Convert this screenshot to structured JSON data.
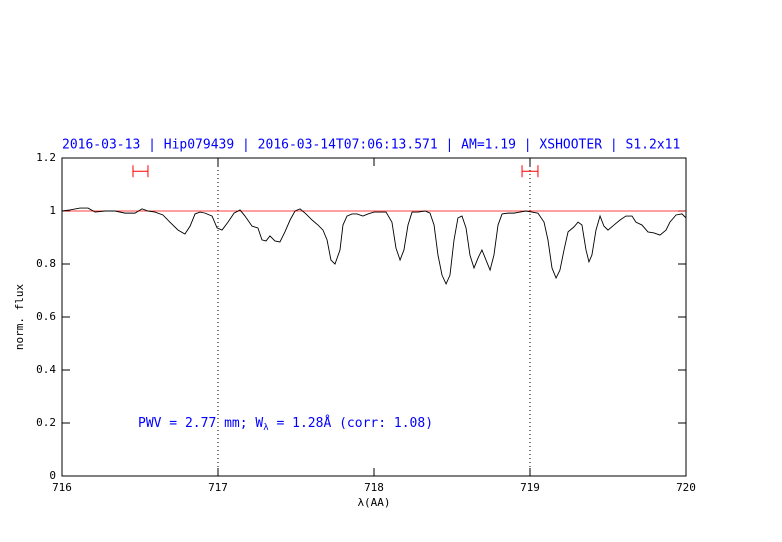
{
  "chart_data": {
    "type": "line",
    "title": "2016-03-13 | Hip079439 | 2016-03-14T07:06:13.571 | AM=1.19 | XSHOOTER | S1.2x11",
    "xlabel": "λ(AA)",
    "ylabel": "norm. flux",
    "annotation": [
      "PWV = 2.77 mm; W",
      "λ",
      " = 1.28Å (corr: 1.08)"
    ],
    "color": "#000000",
    "xlim": [
      716,
      720
    ],
    "ylim": [
      0,
      1.2
    ],
    "xticks": [
      716,
      717,
      718,
      719,
      720
    ],
    "yticks": [
      0,
      0.2,
      0.4,
      0.6,
      0.8,
      1,
      1.2
    ],
    "vlines": [
      717,
      719
    ],
    "reference_line": {
      "y": 1,
      "color": "#ff0000"
    },
    "range_markers": {
      "y": 1.15,
      "color": "#ff0000",
      "ranges": [
        [
          716.455,
          716.551
        ],
        [
          718.949,
          719.051
        ]
      ]
    },
    "x": [
      716,
      716.051,
      716.115,
      716.167,
      716.212,
      716.276,
      716.34,
      716.404,
      716.468,
      716.513,
      716.551,
      716.596,
      716.647,
      716.692,
      716.744,
      716.788,
      716.821,
      716.853,
      716.885,
      716.917,
      716.962,
      716.994,
      717.026,
      717.064,
      717.103,
      717.141,
      717.173,
      717.218,
      717.256,
      717.282,
      717.308,
      717.333,
      717.365,
      717.397,
      717.429,
      717.462,
      717.494,
      717.526,
      717.564,
      717.603,
      717.641,
      717.673,
      717.699,
      717.724,
      717.75,
      717.782,
      717.801,
      717.827,
      717.859,
      717.891,
      717.929,
      717.962,
      718.0,
      718.038,
      718.077,
      718.115,
      718.141,
      718.167,
      718.192,
      718.218,
      718.244,
      718.282,
      718.327,
      718.359,
      718.385,
      718.41,
      718.436,
      718.462,
      718.487,
      718.513,
      718.538,
      718.564,
      718.59,
      718.615,
      718.641,
      718.667,
      718.692,
      718.718,
      718.744,
      718.769,
      718.795,
      718.821,
      718.859,
      718.897,
      718.936,
      718.974,
      719.013,
      719.051,
      719.09,
      719.115,
      719.141,
      719.167,
      719.192,
      719.218,
      719.244,
      719.282,
      719.308,
      719.333,
      719.359,
      719.378,
      719.397,
      719.423,
      719.449,
      719.474,
      719.5,
      719.538,
      719.577,
      719.615,
      719.654,
      719.679,
      719.718,
      719.756,
      719.795,
      719.833,
      719.872,
      719.897,
      719.936,
      719.974,
      720.0
    ],
    "values": [
      1.0,
      1.004,
      1.011,
      1.011,
      0.996,
      1.0,
      1.0,
      0.992,
      0.992,
      1.008,
      1.0,
      0.996,
      0.985,
      0.958,
      0.928,
      0.913,
      0.943,
      0.989,
      0.996,
      0.992,
      0.981,
      0.936,
      0.928,
      0.958,
      0.992,
      1.004,
      0.981,
      0.943,
      0.936,
      0.891,
      0.887,
      0.906,
      0.887,
      0.883,
      0.921,
      0.966,
      1.0,
      1.008,
      0.989,
      0.966,
      0.947,
      0.928,
      0.891,
      0.815,
      0.8,
      0.853,
      0.947,
      0.981,
      0.989,
      0.989,
      0.981,
      0.989,
      0.996,
      0.996,
      0.996,
      0.958,
      0.86,
      0.815,
      0.853,
      0.947,
      0.996,
      0.996,
      1.0,
      0.992,
      0.947,
      0.834,
      0.758,
      0.725,
      0.758,
      0.891,
      0.974,
      0.981,
      0.936,
      0.834,
      0.785,
      0.823,
      0.853,
      0.815,
      0.777,
      0.834,
      0.947,
      0.989,
      0.992,
      0.992,
      0.996,
      1.0,
      0.996,
      0.992,
      0.958,
      0.891,
      0.785,
      0.747,
      0.777,
      0.853,
      0.921,
      0.94,
      0.958,
      0.947,
      0.853,
      0.808,
      0.834,
      0.928,
      0.981,
      0.943,
      0.928,
      0.947,
      0.966,
      0.981,
      0.981,
      0.958,
      0.947,
      0.921,
      0.917,
      0.909,
      0.928,
      0.958,
      0.985,
      0.989,
      0.974
    ]
  }
}
